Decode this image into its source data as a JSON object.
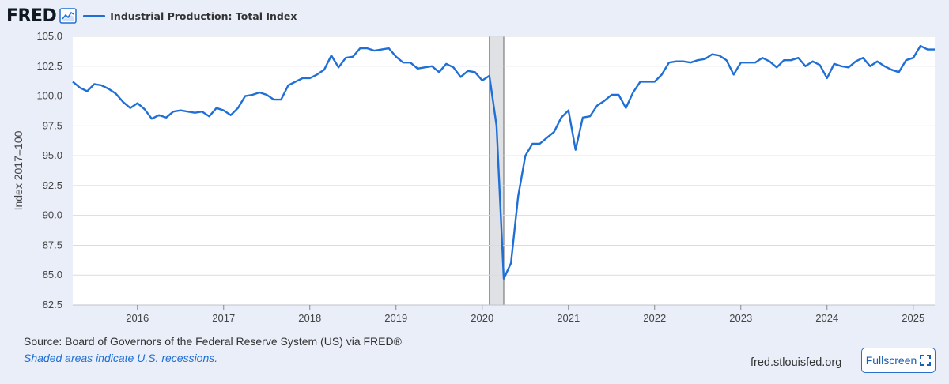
{
  "header": {
    "logo_text": "FRED",
    "logo_icon": "line-chart-icon"
  },
  "chart_data": {
    "type": "line",
    "title": "",
    "xlabel": "",
    "ylabel": "Index 2017=100",
    "ylim": [
      82.5,
      105.0
    ],
    "xlim": [
      "2015-04",
      "2025-04"
    ],
    "yticks": [
      "82.5",
      "85.0",
      "87.5",
      "90.0",
      "92.5",
      "95.0",
      "97.5",
      "100.0",
      "102.5",
      "105.0"
    ],
    "xticks": [
      "2016",
      "2017",
      "2018",
      "2019",
      "2020",
      "2021",
      "2022",
      "2023",
      "2024",
      "2025"
    ],
    "grid": true,
    "legend_position": "top-left",
    "recession_shading": [
      {
        "start": "2020-02",
        "end": "2020-04"
      }
    ],
    "series": [
      {
        "name": "Industrial Production: Total Index",
        "color": "#1f6fd6",
        "x": [
          "2015-04",
          "2015-05",
          "2015-06",
          "2015-07",
          "2015-08",
          "2015-09",
          "2015-10",
          "2015-11",
          "2015-12",
          "2016-01",
          "2016-02",
          "2016-03",
          "2016-04",
          "2016-05",
          "2016-06",
          "2016-07",
          "2016-08",
          "2016-09",
          "2016-10",
          "2016-11",
          "2016-12",
          "2017-01",
          "2017-02",
          "2017-03",
          "2017-04",
          "2017-05",
          "2017-06",
          "2017-07",
          "2017-08",
          "2017-09",
          "2017-10",
          "2017-11",
          "2017-12",
          "2018-01",
          "2018-02",
          "2018-03",
          "2018-04",
          "2018-05",
          "2018-06",
          "2018-07",
          "2018-08",
          "2018-09",
          "2018-10",
          "2018-11",
          "2018-12",
          "2019-01",
          "2019-02",
          "2019-03",
          "2019-04",
          "2019-05",
          "2019-06",
          "2019-07",
          "2019-08",
          "2019-09",
          "2019-10",
          "2019-11",
          "2019-12",
          "2020-01",
          "2020-02",
          "2020-03",
          "2020-04",
          "2020-05",
          "2020-06",
          "2020-07",
          "2020-08",
          "2020-09",
          "2020-10",
          "2020-11",
          "2020-12",
          "2021-01",
          "2021-02",
          "2021-03",
          "2021-04",
          "2021-05",
          "2021-06",
          "2021-07",
          "2021-08",
          "2021-09",
          "2021-10",
          "2021-11",
          "2021-12",
          "2022-01",
          "2022-02",
          "2022-03",
          "2022-04",
          "2022-05",
          "2022-06",
          "2022-07",
          "2022-08",
          "2022-09",
          "2022-10",
          "2022-11",
          "2022-12",
          "2023-01",
          "2023-02",
          "2023-03",
          "2023-04",
          "2023-05",
          "2023-06",
          "2023-07",
          "2023-08",
          "2023-09",
          "2023-10",
          "2023-11",
          "2023-12",
          "2024-01",
          "2024-02",
          "2024-03",
          "2024-04",
          "2024-05",
          "2024-06",
          "2024-07",
          "2024-08",
          "2024-09",
          "2024-10",
          "2024-11",
          "2024-12",
          "2025-01",
          "2025-02",
          "2025-03",
          "2025-04"
        ],
        "values": [
          101.2,
          100.7,
          100.4,
          101.0,
          100.9,
          100.6,
          100.2,
          99.5,
          99.0,
          99.4,
          98.9,
          98.1,
          98.4,
          98.2,
          98.7,
          98.8,
          98.7,
          98.6,
          98.7,
          98.3,
          99.0,
          98.8,
          98.4,
          99.0,
          100.0,
          100.1,
          100.3,
          100.1,
          99.7,
          99.7,
          100.9,
          101.2,
          101.5,
          101.5,
          101.8,
          102.2,
          103.4,
          102.4,
          103.2,
          103.3,
          104.0,
          104.0,
          103.8,
          103.9,
          104.0,
          103.3,
          102.8,
          102.8,
          102.3,
          102.4,
          102.5,
          102.0,
          102.7,
          102.4,
          101.6,
          102.1,
          102.0,
          101.3,
          101.7,
          97.5,
          84.7,
          86.0,
          91.6,
          95.0,
          96.0,
          96.0,
          96.5,
          97.0,
          98.2,
          98.8,
          95.5,
          98.2,
          98.3,
          99.2,
          99.6,
          100.1,
          100.1,
          99.0,
          100.3,
          101.2,
          101.2,
          101.2,
          101.8,
          102.8,
          102.9,
          102.9,
          102.8,
          103.0,
          103.1,
          103.5,
          103.4,
          103.0,
          101.8,
          102.8,
          102.8,
          102.8,
          103.2,
          102.9,
          102.4,
          103.0,
          103.0,
          103.2,
          102.5,
          102.9,
          102.6,
          101.5,
          102.7,
          102.5,
          102.4,
          102.9,
          103.2,
          102.5,
          102.9,
          102.5,
          102.2,
          102.0,
          103.0,
          103.2,
          104.2,
          103.9,
          103.9
        ]
      }
    ]
  },
  "footer": {
    "source": "Source: Board of Governors of the Federal Reserve System (US) via FRED®",
    "note": "Shaded areas indicate U.S. recessions.",
    "site": "fred.stlouisfed.org",
    "fullscreen_label": "Fullscreen",
    "fullscreen_icon": "expand-icon"
  }
}
